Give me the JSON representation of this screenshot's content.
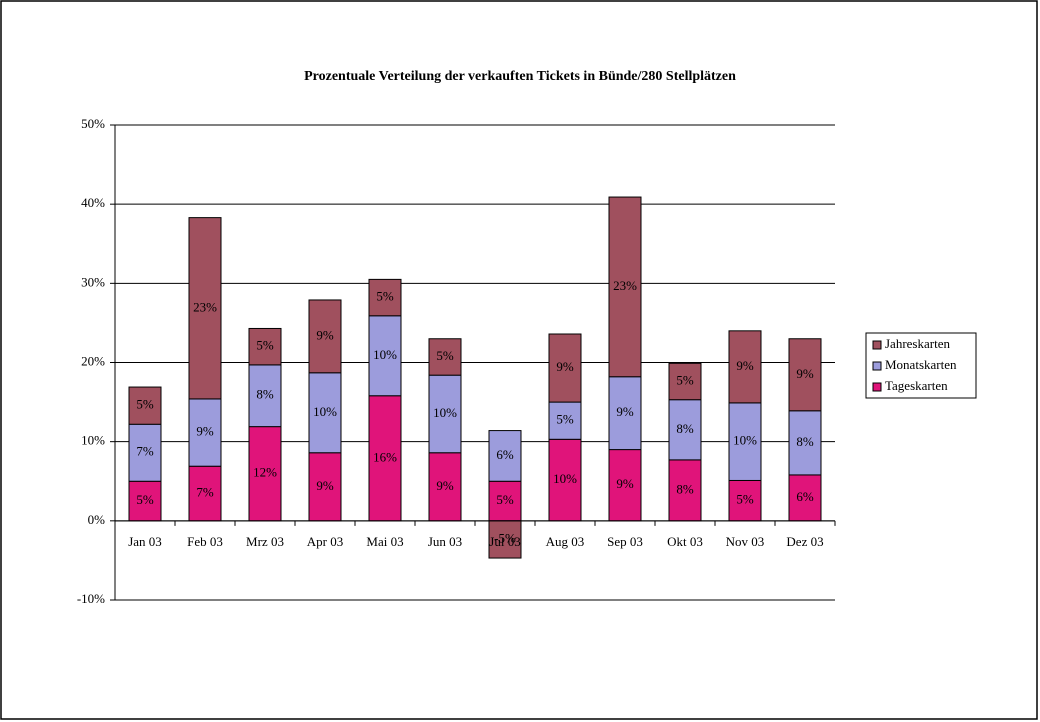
{
  "chart_data": {
    "type": "stacked-bar",
    "title": "Prozentuale Verteilung der verkauften Tickets in Bünde/280 Stellplätzen",
    "categories": [
      "Jan 03",
      "Feb 03",
      "Mrz 03",
      "Apr 03",
      "Mai 03",
      "Jun 03",
      "Jul 03",
      "Aug 03",
      "Sep 03",
      "Okt 03",
      "Nov 03",
      "Dez 03"
    ],
    "series": [
      {
        "name": "Tageskarten",
        "color": "#e0147a",
        "values": [
          5.0,
          6.9,
          11.9,
          8.6,
          15.8,
          8.6,
          5.0,
          10.3,
          9.0,
          7.7,
          5.1,
          5.8
        ],
        "value_labels": [
          "5%",
          "7%",
          "12%",
          "9%",
          "16%",
          "9%",
          "5%",
          "10%",
          "9%",
          "8%",
          "5%",
          "6%"
        ]
      },
      {
        "name": "Monatskarten",
        "color": "#9c9cdc",
        "values": [
          7.2,
          8.5,
          7.8,
          10.1,
          10.1,
          9.8,
          6.4,
          4.7,
          9.2,
          7.6,
          9.8,
          8.1
        ],
        "value_labels": [
          "7%",
          "9%",
          "8%",
          "10%",
          "10%",
          "10%",
          "6%",
          "5%",
          "9%",
          "8%",
          "10%",
          "8%"
        ]
      },
      {
        "name": "Jahreskarten",
        "color": "#a0505e",
        "values": [
          4.7,
          22.9,
          4.6,
          9.2,
          4.6,
          4.6,
          -4.7,
          8.6,
          22.7,
          4.6,
          9.1,
          9.1
        ],
        "value_labels": [
          "5%",
          "23%",
          "5%",
          "9%",
          "5%",
          "5%",
          "-5%",
          "9%",
          "23%",
          "5%",
          "9%",
          "9%"
        ]
      }
    ],
    "ylim": [
      -10,
      50
    ],
    "yticks": [
      {
        "value": -10,
        "label": "-10%"
      },
      {
        "value": 0,
        "label": "0%"
      },
      {
        "value": 10,
        "label": "10%"
      },
      {
        "value": 20,
        "label": "20%"
      },
      {
        "value": 30,
        "label": "30%"
      },
      {
        "value": 40,
        "label": "40%"
      },
      {
        "value": 50,
        "label": "50%"
      }
    ],
    "grid": true,
    "legend": "right"
  }
}
